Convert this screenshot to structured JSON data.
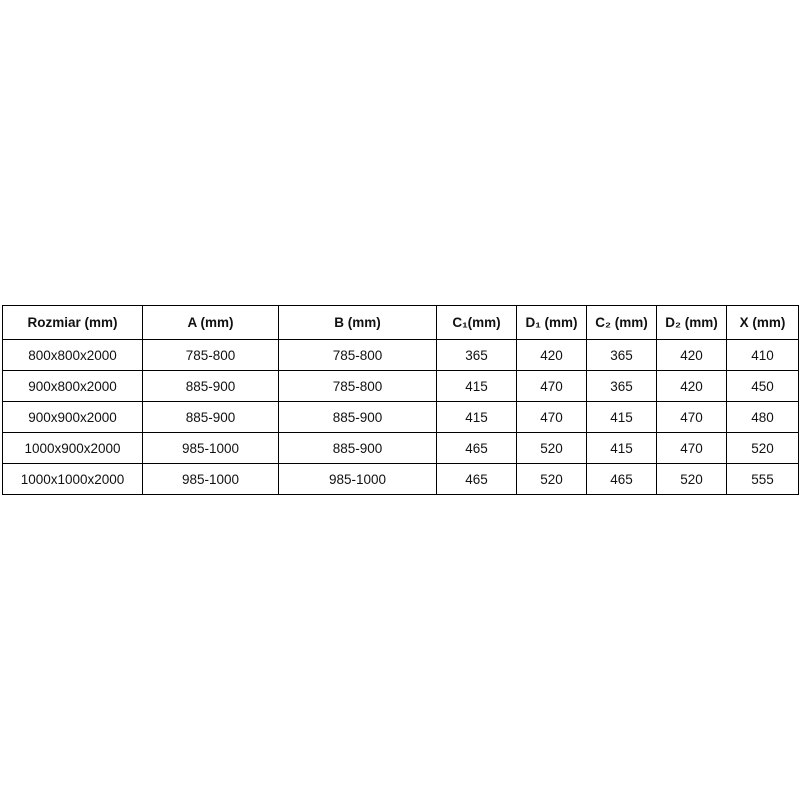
{
  "table": {
    "headers": [
      "Rozmiar (mm)",
      "A (mm)",
      "B (mm)",
      "C₁(mm)",
      "D₁ (mm)",
      "C₂ (mm)",
      "D₂ (mm)",
      "X (mm)"
    ],
    "rows": [
      [
        "800x800x2000",
        "785-800",
        "785-800",
        "365",
        "420",
        "365",
        "420",
        "410"
      ],
      [
        "900x800x2000",
        "885-900",
        "785-800",
        "415",
        "470",
        "365",
        "420",
        "450"
      ],
      [
        "900x900x2000",
        "885-900",
        "885-900",
        "415",
        "470",
        "415",
        "470",
        "480"
      ],
      [
        "1000x900x2000",
        "985-1000",
        "885-900",
        "465",
        "520",
        "415",
        "470",
        "520"
      ],
      [
        "1000x1000x2000",
        "985-1000",
        "985-1000",
        "465",
        "520",
        "465",
        "520",
        "555"
      ]
    ]
  }
}
